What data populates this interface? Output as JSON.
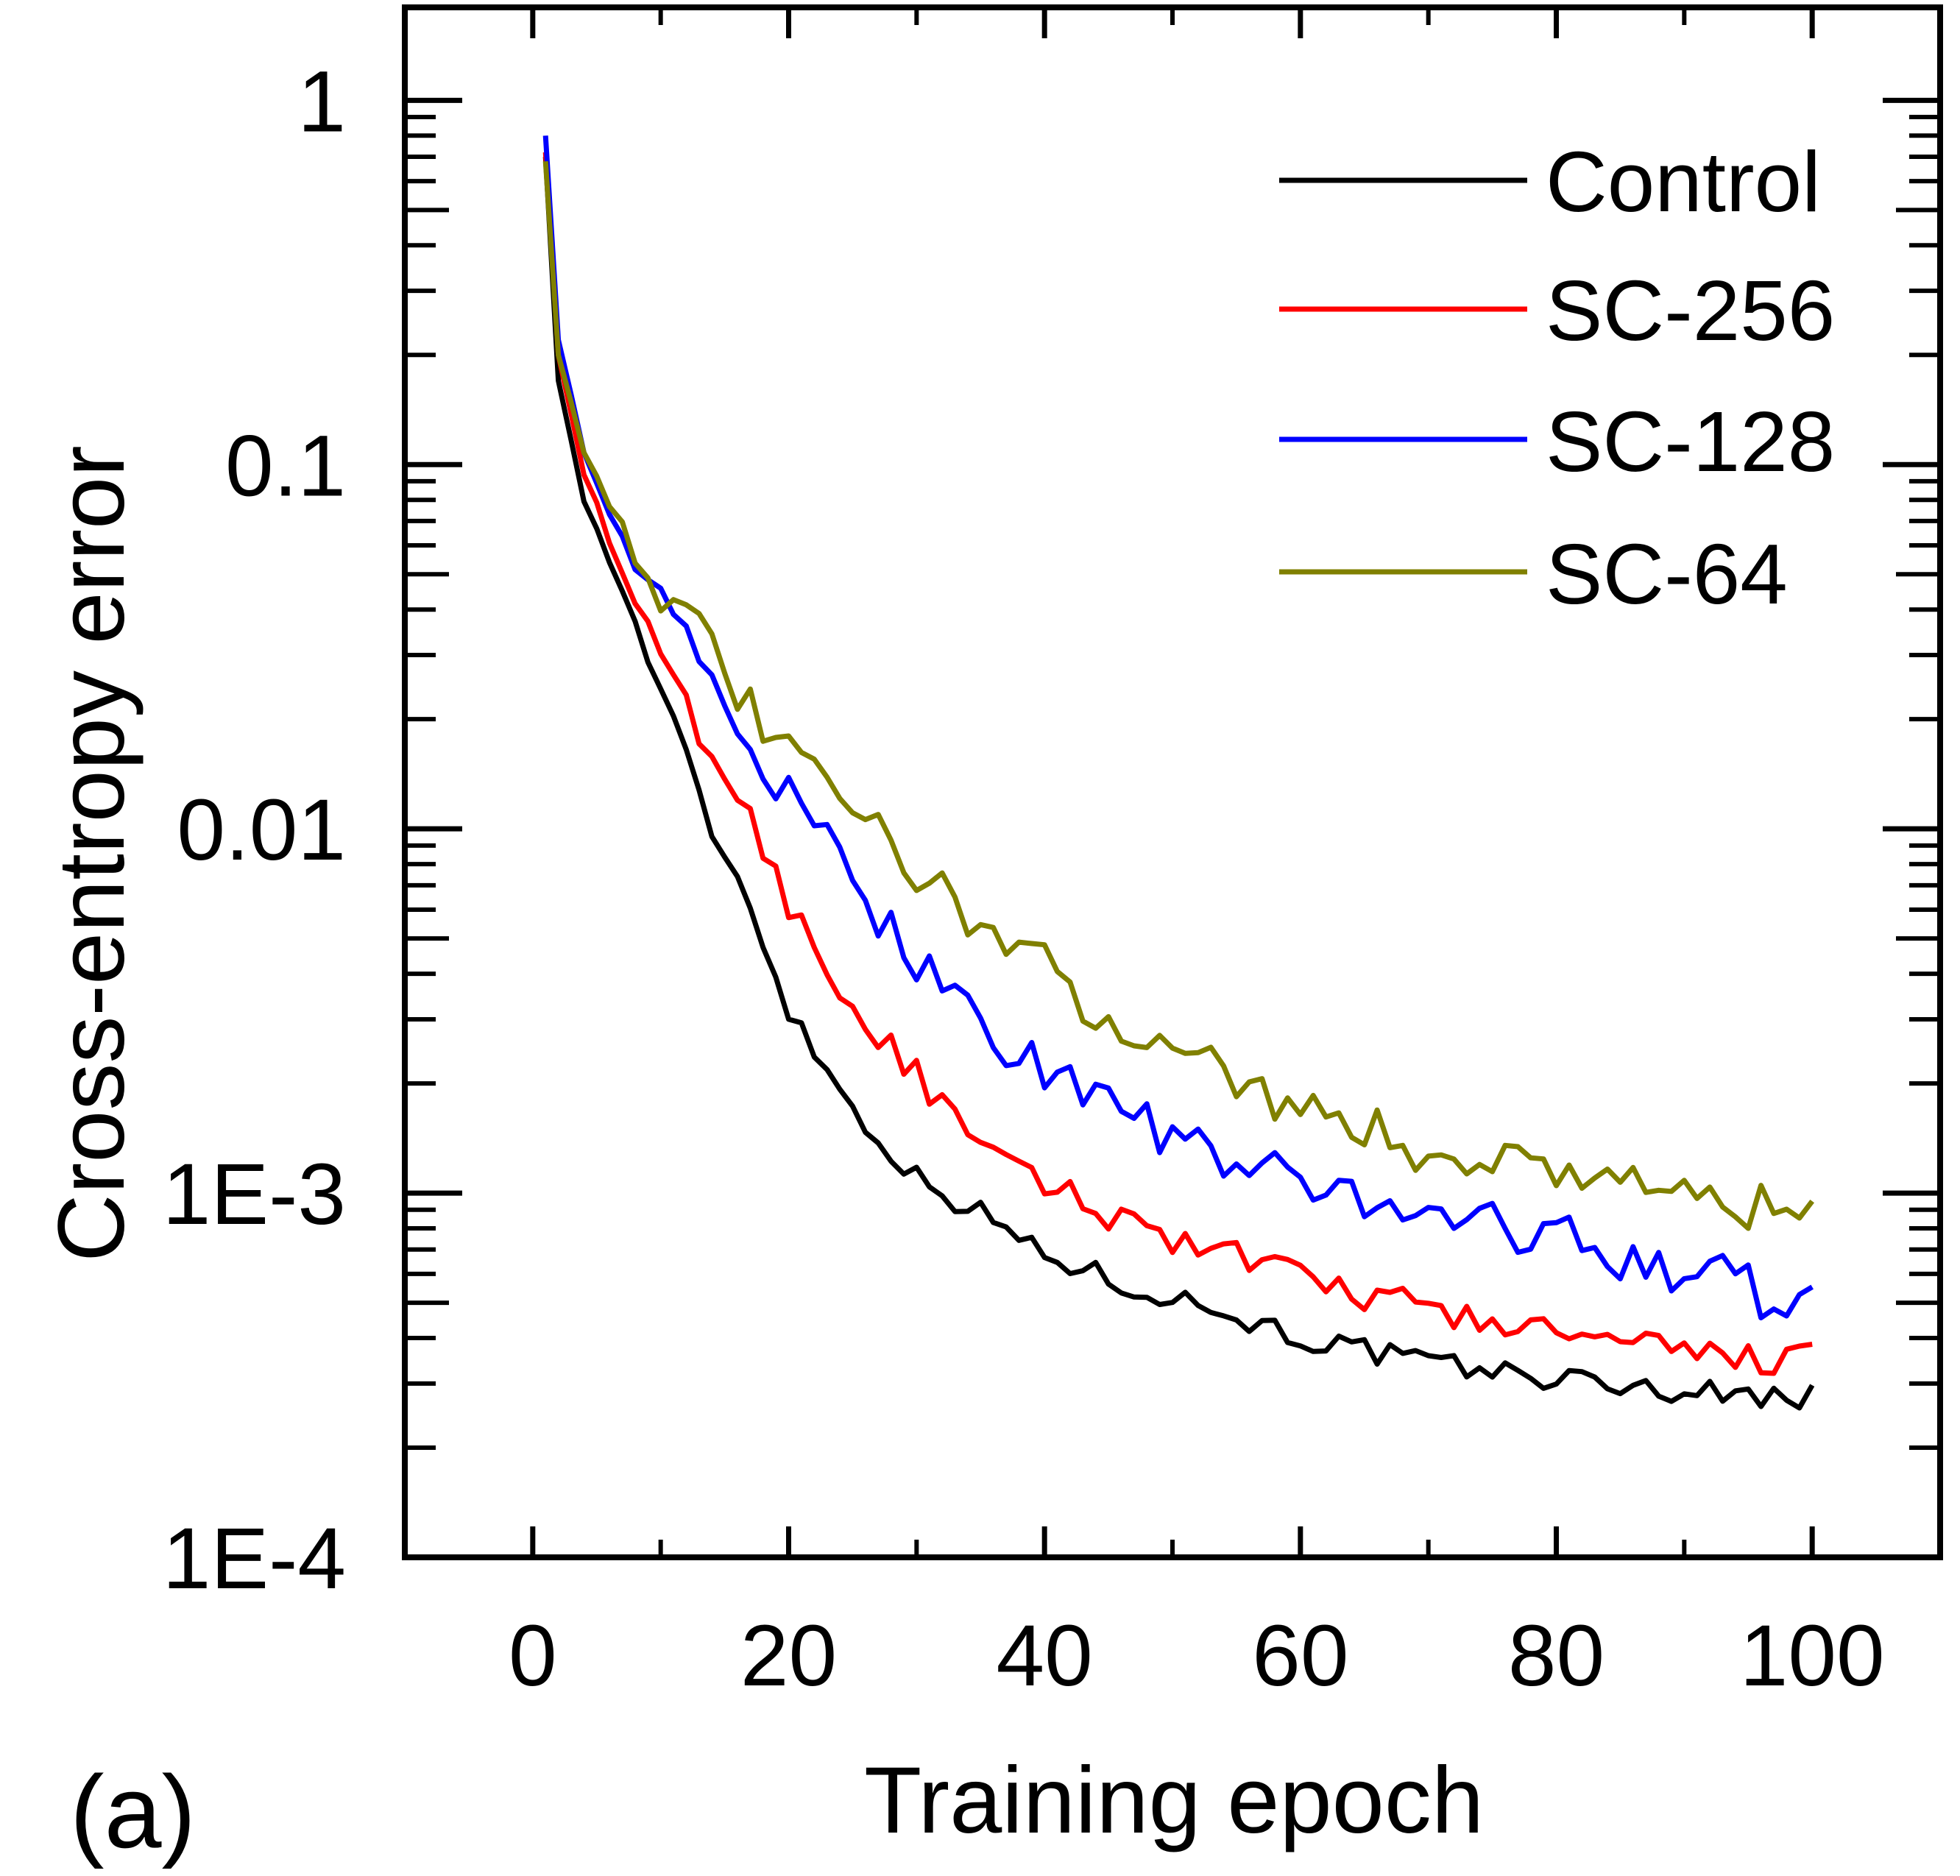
{
  "chart_data": {
    "type": "line",
    "title": "",
    "panel_label": "(a)",
    "xlabel": "Training epoch",
    "ylabel": "Cross-entropy error",
    "xlim": [
      -10,
      110
    ],
    "ylim": [
      0.0001,
      1.8
    ],
    "yscale": "log",
    "legend_position": "top-right",
    "x_ticks": [
      {
        "value": 0,
        "label": "0"
      },
      {
        "value": 20,
        "label": "20"
      },
      {
        "value": 40,
        "label": "40"
      },
      {
        "value": 60,
        "label": "60"
      },
      {
        "value": 80,
        "label": "80"
      },
      {
        "value": 100,
        "label": "100"
      }
    ],
    "y_ticks": [
      {
        "value": 1,
        "label": "1"
      },
      {
        "value": 0.1,
        "label": "0.1"
      },
      {
        "value": 0.01,
        "label": "0.01"
      },
      {
        "value": 0.001,
        "label": "1E-3"
      },
      {
        "value": 0.0001,
        "label": "1E-4"
      }
    ],
    "series": [
      {
        "name": "Control",
        "color": "#000000",
        "anchors": [
          [
            1,
            0.7
          ],
          [
            2,
            0.17
          ],
          [
            4,
            0.08
          ],
          [
            7,
            0.045
          ],
          [
            10,
            0.024
          ],
          [
            14,
            0.01
          ],
          [
            17,
            0.0062
          ],
          [
            20,
            0.0032
          ],
          [
            25,
            0.0017
          ],
          [
            30,
            0.0011
          ],
          [
            35,
            0.00088
          ],
          [
            40,
            0.00068
          ],
          [
            45,
            0.00058
          ],
          [
            50,
            0.00052
          ],
          [
            55,
            0.00046
          ],
          [
            60,
            0.0004
          ],
          [
            70,
            0.00034
          ],
          [
            80,
            0.00031
          ],
          [
            90,
            0.000285
          ],
          [
            100,
            0.000275
          ]
        ],
        "noise": 0.035
      },
      {
        "name": "SC-256",
        "color": "#ff0000",
        "anchors": [
          [
            1,
            0.72
          ],
          [
            2,
            0.2
          ],
          [
            4,
            0.095
          ],
          [
            7,
            0.05
          ],
          [
            10,
            0.029
          ],
          [
            14,
            0.016
          ],
          [
            17,
            0.0105
          ],
          [
            20,
            0.0063
          ],
          [
            25,
            0.0032
          ],
          [
            30,
            0.0021
          ],
          [
            35,
            0.0013
          ],
          [
            40,
            0.00105
          ],
          [
            45,
            0.00088
          ],
          [
            50,
            0.00076
          ],
          [
            55,
            0.00067
          ],
          [
            60,
            0.00058
          ],
          [
            70,
            0.00048
          ],
          [
            80,
            0.00041
          ],
          [
            90,
            0.00036
          ],
          [
            100,
            0.00035
          ]
        ],
        "noise": 0.045
      },
      {
        "name": "SC-128",
        "color": "#0000ff",
        "anchors": [
          [
            1,
            0.8
          ],
          [
            2,
            0.22
          ],
          [
            4,
            0.11
          ],
          [
            7,
            0.062
          ],
          [
            10,
            0.041
          ],
          [
            14,
            0.025
          ],
          [
            17,
            0.017
          ],
          [
            20,
            0.012
          ],
          [
            25,
            0.0071
          ],
          [
            30,
            0.0045
          ],
          [
            35,
            0.0029
          ],
          [
            40,
            0.0022
          ],
          [
            45,
            0.0018
          ],
          [
            50,
            0.0014
          ],
          [
            55,
            0.0012
          ],
          [
            60,
            0.00105
          ],
          [
            70,
            0.0009
          ],
          [
            80,
            0.00075
          ],
          [
            90,
            0.00062
          ],
          [
            100,
            0.00048
          ]
        ],
        "noise": 0.07
      },
      {
        "name": "SC-64",
        "color": "#808000",
        "anchors": [
          [
            1,
            0.68
          ],
          [
            2,
            0.2
          ],
          [
            4,
            0.11
          ],
          [
            7,
            0.067
          ],
          [
            10,
            0.045
          ],
          [
            14,
            0.03
          ],
          [
            17,
            0.021
          ],
          [
            20,
            0.016
          ],
          [
            25,
            0.011
          ],
          [
            30,
            0.0078
          ],
          [
            35,
            0.0055
          ],
          [
            40,
            0.0041
          ],
          [
            45,
            0.0031
          ],
          [
            50,
            0.0025
          ],
          [
            55,
            0.0021
          ],
          [
            60,
            0.0017
          ],
          [
            70,
            0.0013
          ],
          [
            80,
            0.0012
          ],
          [
            90,
            0.001
          ],
          [
            100,
            0.00083
          ]
        ],
        "noise": 0.07
      }
    ]
  }
}
